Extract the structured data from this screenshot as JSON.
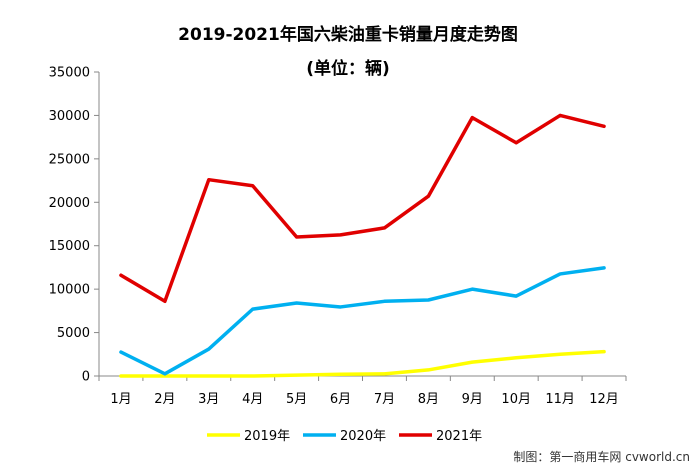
{
  "chart_data": {
    "type": "line",
    "title": "2019-2021年国六柴油重卡销量月度走势图",
    "subtitle": "(单位：辆)",
    "categories": [
      "1月",
      "2月",
      "3月",
      "4月",
      "5月",
      "6月",
      "7月",
      "8月",
      "9月",
      "10月",
      "11月",
      "12月"
    ],
    "ylim": [
      0,
      35000
    ],
    "yticks": [
      0,
      5000,
      10000,
      15000,
      20000,
      25000,
      30000,
      35000
    ],
    "grid": false,
    "legend_position": "bottom",
    "series": [
      {
        "name": "2019年",
        "color": "#ffff00",
        "values": [
          0,
          0,
          0,
          0,
          100,
          200,
          250,
          700,
          1600,
          2100,
          2500,
          2800
        ]
      },
      {
        "name": "2020年",
        "color": "#00b0f0",
        "values": [
          2750,
          250,
          3100,
          7700,
          8400,
          7950,
          8600,
          8750,
          10000,
          9200,
          11750,
          12450
        ]
      },
      {
        "name": "2021年",
        "color": "#e00000",
        "values": [
          11600,
          8600,
          22600,
          21900,
          16000,
          16250,
          17050,
          20700,
          29750,
          26850,
          30000,
          28750
        ]
      }
    ],
    "credit": "制图：第一商用车网 cvworld.cn"
  }
}
